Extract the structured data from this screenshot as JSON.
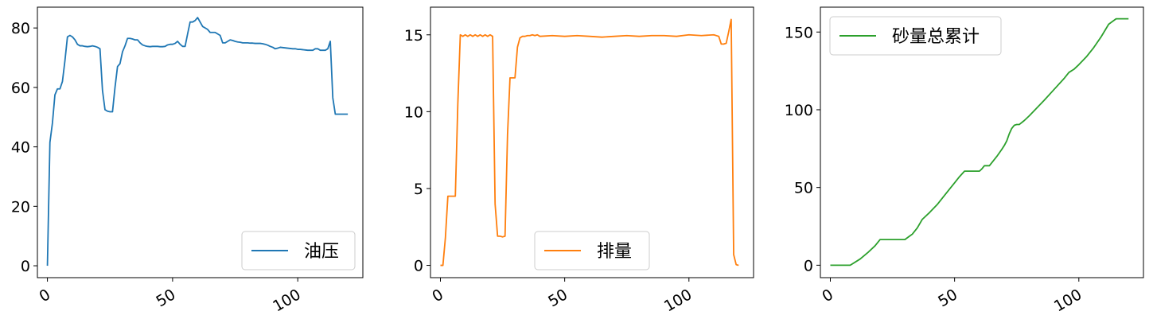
{
  "chart_data": [
    {
      "type": "line",
      "title": "",
      "xlabel": "",
      "ylabel": "",
      "xlim": [
        -4,
        126
      ],
      "ylim": [
        -4,
        87
      ],
      "xticks": [
        0,
        50,
        100
      ],
      "yticks": [
        0,
        20,
        40,
        60,
        80
      ],
      "legend_position": "lower-right",
      "grid": false,
      "series": [
        {
          "name": "油压",
          "color": "#1f77b4",
          "x": [
            0,
            1,
            2,
            3,
            4,
            5,
            6,
            7,
            8,
            9,
            10,
            11,
            12,
            13,
            14,
            15,
            16,
            17,
            18,
            19,
            20,
            21,
            22,
            23,
            24,
            25,
            26,
            27,
            28,
            29,
            30,
            31,
            32,
            33,
            34,
            35,
            36,
            37,
            38,
            39,
            40,
            41,
            42,
            43,
            44,
            45,
            46,
            47,
            48,
            49,
            50,
            51,
            52,
            53,
            54,
            55,
            56,
            57,
            58,
            59,
            60,
            61,
            62,
            63,
            64,
            65,
            66,
            67,
            68,
            69,
            70,
            71,
            72,
            73,
            74,
            75,
            76,
            77,
            78,
            79,
            80,
            81,
            82,
            83,
            84,
            85,
            86,
            87,
            88,
            89,
            90,
            91,
            92,
            93,
            94,
            95,
            96,
            97,
            98,
            99,
            100,
            101,
            102,
            103,
            104,
            105,
            106,
            107,
            108,
            109,
            110,
            111,
            112,
            113,
            114,
            115,
            116,
            117,
            118,
            119,
            120
          ],
          "y": [
            0,
            41.5,
            48,
            57.5,
            59.5,
            59.5,
            62,
            69,
            77,
            77.5,
            77,
            76,
            74.5,
            74,
            74,
            73.8,
            73.7,
            73.8,
            74,
            73.8,
            73.5,
            73,
            59,
            52.5,
            52,
            51.8,
            51.8,
            60,
            67,
            68,
            72,
            74,
            76.5,
            76.5,
            76.3,
            76,
            76,
            75,
            74.3,
            74,
            73.8,
            73.7,
            73.8,
            73.8,
            73.8,
            73.7,
            73.7,
            73.8,
            74.3,
            74.5,
            74.5,
            74.8,
            75.5,
            74.5,
            73.8,
            73.8,
            78,
            82,
            82,
            82.5,
            83.5,
            82,
            80.5,
            80,
            79.5,
            78.5,
            78.5,
            78.5,
            78,
            77.5,
            75,
            75,
            75.5,
            76,
            75.8,
            75.5,
            75.3,
            75.2,
            75,
            75,
            75,
            74.9,
            74.9,
            74.8,
            74.8,
            74.8,
            74.7,
            74.5,
            74.2,
            73.8,
            73.5,
            73,
            73.2,
            73.5,
            73.4,
            73.3,
            73.2,
            73.1,
            73,
            73,
            72.8,
            72.8,
            72.7,
            72.6,
            72.5,
            72.5,
            72.5,
            73,
            73,
            72.5,
            72.5,
            72.5,
            73,
            75.5,
            56.5,
            51,
            51,
            51,
            51,
            51,
            51
          ],
          "x_note": "",
          "_": ""
        }
      ]
    },
    {
      "type": "line",
      "title": "",
      "xlabel": "",
      "ylabel": "",
      "xlim": [
        -4,
        126
      ],
      "ylim": [
        -0.8,
        16.8
      ],
      "xticks": [
        0,
        50,
        100
      ],
      "yticks": [
        0,
        5,
        10,
        15
      ],
      "legend_position": "lower-center",
      "grid": false,
      "series": [
        {
          "name": "排量",
          "color": "#ff7f0e",
          "x": [
            0,
            1,
            2,
            3,
            4,
            5,
            6,
            7,
            8,
            9,
            10,
            11,
            12,
            13,
            14,
            15,
            16,
            17,
            18,
            19,
            20,
            21,
            22,
            23,
            24,
            25,
            26,
            27,
            28,
            29,
            30,
            31,
            32,
            33,
            34,
            35,
            36,
            37,
            38,
            39,
            40,
            45,
            50,
            55,
            60,
            65,
            70,
            75,
            80,
            85,
            90,
            95,
            100,
            105,
            110,
            112,
            113,
            114,
            115,
            116,
            117,
            118,
            119,
            120
          ],
          "y": [
            0,
            0,
            1.8,
            4.5,
            4.5,
            4.5,
            4.5,
            10.5,
            15,
            14.9,
            15,
            14.9,
            15,
            14.9,
            15,
            14.9,
            15,
            14.9,
            15,
            14.9,
            15,
            14.9,
            4,
            1.9,
            1.9,
            1.85,
            1.9,
            8.5,
            12.2,
            12.2,
            12.2,
            14.2,
            14.8,
            14.9,
            14.9,
            14.95,
            14.95,
            15,
            14.95,
            15,
            14.9,
            14.95,
            14.9,
            14.95,
            14.9,
            14.85,
            14.9,
            14.95,
            14.9,
            14.95,
            14.95,
            14.9,
            15,
            14.95,
            15,
            14.9,
            14.4,
            14.4,
            14.45,
            15.2,
            16,
            0.7,
            0.05,
            0
          ],
          "_": ""
        }
      ]
    },
    {
      "type": "line",
      "title": "",
      "xlabel": "",
      "ylabel": "",
      "xlim": [
        -4,
        126
      ],
      "ylim": [
        -8,
        166
      ],
      "xticks": [
        0,
        50,
        100
      ],
      "yticks": [
        0,
        50,
        100,
        150
      ],
      "legend_position": "upper-left",
      "grid": false,
      "series": [
        {
          "name": "砂量总累计",
          "color": "#2ca02c",
          "x": [
            0,
            5,
            8,
            12,
            15,
            18,
            20,
            25,
            28,
            30,
            33,
            35,
            37,
            40,
            43,
            45,
            48,
            50,
            52,
            54,
            56,
            58,
            60,
            61,
            62,
            63,
            64,
            65,
            67,
            69,
            70,
            71,
            72,
            73,
            74,
            75,
            76,
            78,
            80,
            83,
            86,
            90,
            94,
            96,
            98,
            100,
            103,
            106,
            109,
            112,
            115,
            118,
            120
          ],
          "y": [
            0,
            0,
            0,
            4,
            8,
            12.5,
            16.5,
            16.5,
            16.5,
            16.5,
            20,
            24,
            29.5,
            34,
            39,
            43,
            49,
            53,
            57,
            60.5,
            60.5,
            60.5,
            60.5,
            62,
            64,
            64,
            64,
            66,
            70,
            74.5,
            77,
            80,
            84.5,
            88,
            90,
            90.5,
            90.5,
            93,
            96,
            101,
            106,
            113,
            120,
            124,
            126,
            129,
            134,
            140,
            147,
            155,
            158.5,
            158.5,
            158.5
          ],
          "_": ""
        }
      ]
    }
  ]
}
